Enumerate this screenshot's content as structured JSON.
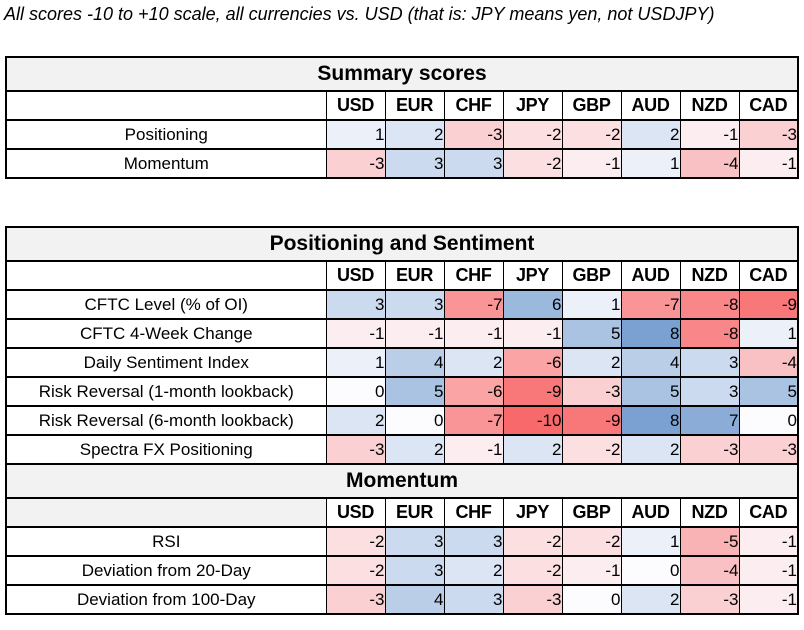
{
  "note": "All scores -10 to +10 scale, all currencies vs. USD (that is: JPY means yen, not USDJPY)",
  "currencies": [
    "USD",
    "EUR",
    "CHF",
    "JPY",
    "GBP",
    "AUD",
    "NZD",
    "CAD"
  ],
  "heat_scale": {
    "min_value": -10,
    "max_value": 10,
    "min_color": "#F8696B",
    "mid_color": "#FCFCFF",
    "max_color": "#5A8AC6"
  },
  "colors": {
    "title_row_bg": "#F2F2F2",
    "grid_border": "#000000",
    "flag_green": "#008000"
  },
  "flag": {
    "name": "error-flag-icon",
    "shape": "green-corner-triangle"
  },
  "blocks": [
    {
      "sections": [
        {
          "title": "Summary scores",
          "header_left_gray": false,
          "rows": [
            {
              "label": "Positioning",
              "values": [
                1,
                2,
                -3,
                -2,
                -2,
                2,
                -1,
                -3
              ]
            },
            {
              "label": "Momentum",
              "values": [
                -3,
                3,
                3,
                -2,
                -1,
                1,
                -4,
                -1
              ]
            }
          ]
        }
      ]
    },
    {
      "sections": [
        {
          "title": "Positioning and Sentiment",
          "header_left_gray": false,
          "rows": [
            {
              "label": "CFTC Level (% of OI)",
              "values": [
                3,
                3,
                -7,
                6,
                1,
                -7,
                -8,
                -9
              ]
            },
            {
              "label": "CFTC 4-Week Change",
              "values": [
                -1,
                -1,
                -1,
                -1,
                5,
                8,
                -8,
                1
              ]
            },
            {
              "label": "Daily Sentiment Index",
              "values": [
                1,
                4,
                2,
                -6,
                2,
                4,
                3,
                -4
              ],
              "flag_col": 0
            },
            {
              "label": "Risk Reversal (1-month lookback)",
              "values": [
                0,
                5,
                -6,
                -9,
                -3,
                5,
                3,
                5
              ]
            },
            {
              "label": "Risk Reversal (6-month lookback)",
              "values": [
                2,
                0,
                -7,
                -10,
                -9,
                8,
                7,
                0
              ]
            },
            {
              "label": "Spectra FX Positioning",
              "values": [
                -3,
                2,
                -1,
                2,
                -2,
                2,
                -3,
                -3
              ]
            }
          ]
        },
        {
          "title": "Momentum",
          "header_left_gray": true,
          "rows": [
            {
              "label": "RSI",
              "values": [
                -2,
                3,
                3,
                -2,
                -2,
                1,
                -5,
                -1
              ]
            },
            {
              "label": "Deviation from 20-Day",
              "values": [
                -2,
                3,
                2,
                -2,
                -1,
                0,
                -4,
                -1
              ]
            },
            {
              "label": "Deviation from 100-Day",
              "values": [
                -3,
                4,
                3,
                -3,
                0,
                2,
                -3,
                -1
              ]
            }
          ]
        }
      ]
    }
  ]
}
